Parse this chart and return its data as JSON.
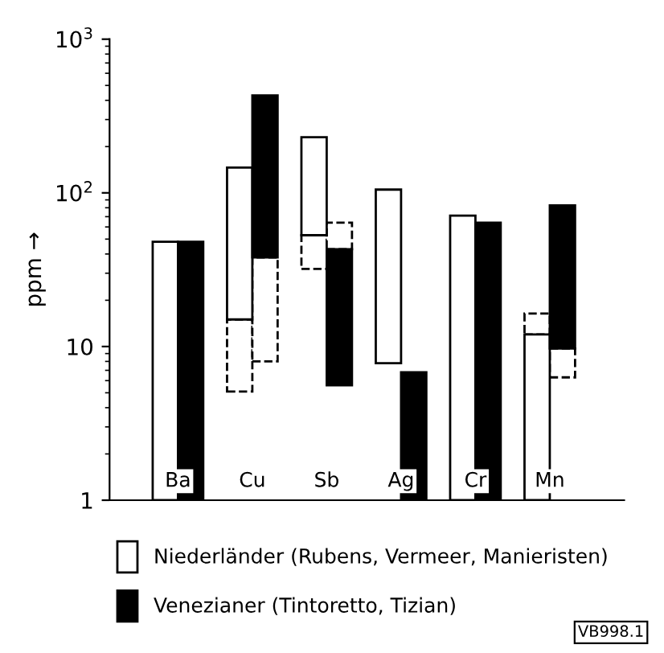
{
  "chart_data": {
    "type": "bar",
    "ylabel": "ppm →",
    "log": true,
    "legend": "bottom",
    "grid": false,
    "categories": [
      "Ba",
      "Cu",
      "Sb",
      "Ag",
      "Cr",
      "Mn"
    ],
    "ylim": [
      1,
      1000
    ],
    "yticks": [
      1,
      10,
      {
        "value": 100,
        "label": "10$^{2}$"
      },
      {
        "value": 1000,
        "label": "10$^{3}$"
      }
    ],
    "series": [
      {
        "name": "Niederländer (Rubens, Vermeer, Manieristen)",
        "color": "#ffffff",
        "base": [
          1,
          15,
          53,
          7.8,
          1,
          1
        ],
        "values": [
          47,
          131,
          177,
          97.2,
          70,
          11
        ]
      },
      {
        "name": "Venezianer (Tintoretto, Tizian)",
        "color": "#000000",
        "base": [
          1,
          38,
          5.6,
          1,
          1,
          9.7
        ],
        "values": [
          47,
          392,
          37.4,
          5.8,
          63,
          73.3
        ]
      },
      {
        "color": "#ffffff",
        "line_style": "dashed",
        "base": [
          null,
          5.1,
          32,
          null,
          null,
          12
        ],
        "values": [
          null,
          9.9,
          21,
          null,
          null,
          4.4
        ]
      },
      {
        "color": "#ffffff",
        "line_style": "dashed",
        "base": [
          null,
          8,
          43,
          null,
          null,
          6.3
        ],
        "values": [
          null,
          30,
          21,
          null,
          null,
          3.4
        ]
      }
    ],
    "annotations": [
      "VB998.1"
    ]
  }
}
